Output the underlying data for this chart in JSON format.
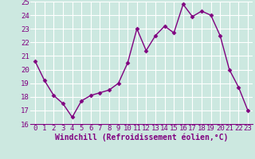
{
  "x": [
    0,
    1,
    2,
    3,
    4,
    5,
    6,
    7,
    8,
    9,
    10,
    11,
    12,
    13,
    14,
    15,
    16,
    17,
    18,
    19,
    20,
    21,
    22,
    23
  ],
  "y": [
    20.6,
    19.2,
    18.1,
    17.5,
    16.5,
    17.7,
    18.1,
    18.3,
    18.5,
    19.0,
    20.5,
    23.0,
    21.4,
    22.5,
    23.2,
    22.7,
    24.8,
    23.9,
    24.3,
    24.0,
    22.5,
    20.0,
    18.7,
    17.0
  ],
  "line_color": "#800080",
  "marker": "D",
  "marker_size": 2.5,
  "xlabel": "Windchill (Refroidissement éolien,°C)",
  "xlabel_fontsize": 7,
  "ylim": [
    16,
    25
  ],
  "yticks": [
    16,
    17,
    18,
    19,
    20,
    21,
    22,
    23,
    24,
    25
  ],
  "xticks": [
    0,
    1,
    2,
    3,
    4,
    5,
    6,
    7,
    8,
    9,
    10,
    11,
    12,
    13,
    14,
    15,
    16,
    17,
    18,
    19,
    20,
    21,
    22,
    23
  ],
  "bg_color": "#cce8e0",
  "grid_color": "#b0d8d0",
  "tick_fontsize": 6.5,
  "line_width": 1.0
}
